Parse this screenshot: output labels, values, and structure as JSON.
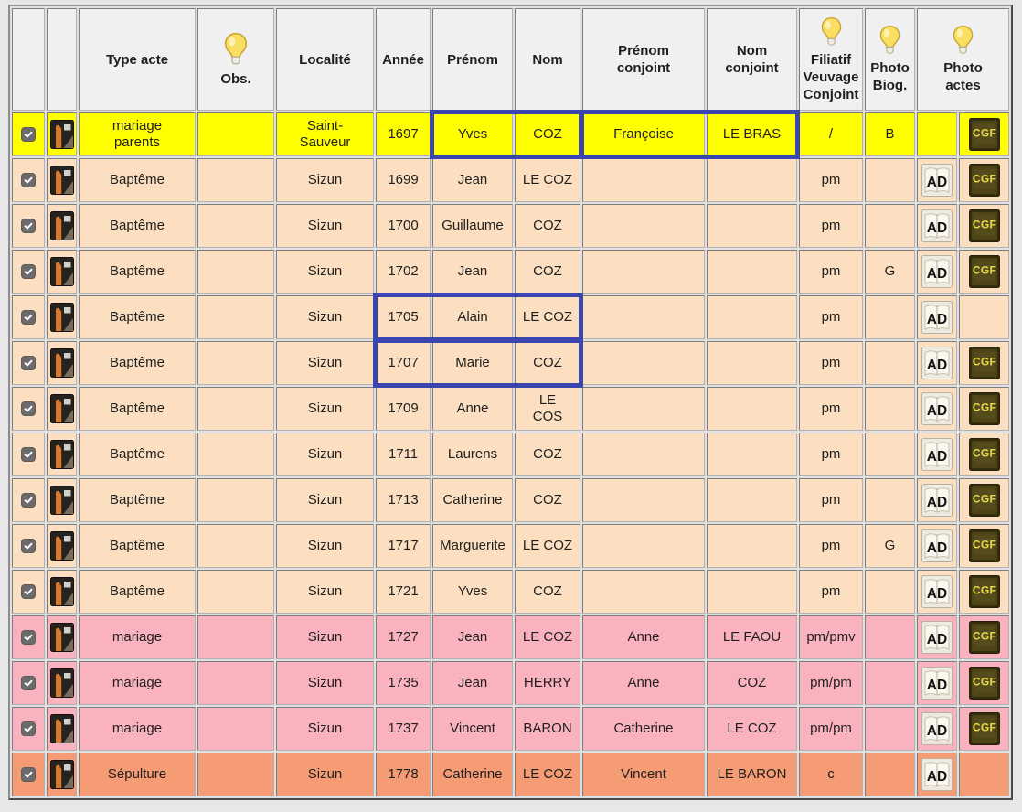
{
  "colors": {
    "page_background": "#e7e7e7",
    "header_bg": "#f0f0f0",
    "highlight_border": "#3a46ad",
    "rows": {
      "yellow": "#ffff00",
      "baptism": "#fbdfc0",
      "marriage": "#f9b2be",
      "burial": "#f69c74"
    }
  },
  "header": {
    "columns": [
      {
        "label": ""
      },
      {
        "label": ""
      },
      {
        "label": "Type acte",
        "bulb": false
      },
      {
        "label": "Obs.",
        "bulb": true
      },
      {
        "label": "Localité",
        "bulb": false
      },
      {
        "label": "Année",
        "bulb": false
      },
      {
        "label": "Prénom",
        "bulb": false
      },
      {
        "label": "Nom",
        "bulb": false
      },
      {
        "label": "Prénom conjoint",
        "bulb": false
      },
      {
        "label": "Nom conjoint",
        "bulb": false
      },
      {
        "label": "Filiatif Veuvage Conjoint",
        "bulb": true
      },
      {
        "label": "Photo Biog.",
        "bulb": true
      },
      {
        "label": "Photo actes",
        "bulb": true
      }
    ]
  },
  "icons": {
    "ad_label": "AD",
    "cgf_label": "CGF"
  },
  "rows": [
    {
      "checked": true,
      "type_acte": "mariage parents",
      "obs": "",
      "localite": "Saint-Sauveur",
      "annee": "1697",
      "prenom": "Yves",
      "nom": "COZ",
      "prenom_conjoint": "Françoise",
      "nom_conjoint": "LE BRAS",
      "filiatif": "/",
      "photo_biog": "B",
      "ad": false,
      "cgf": true,
      "color": "yellow"
    },
    {
      "checked": true,
      "type_acte": "Baptême",
      "obs": "",
      "localite": "Sizun",
      "annee": "1699",
      "prenom": "Jean",
      "nom": "LE COZ",
      "prenom_conjoint": "",
      "nom_conjoint": "",
      "filiatif": "pm",
      "photo_biog": "",
      "ad": true,
      "cgf": true,
      "color": "baptism"
    },
    {
      "checked": true,
      "type_acte": "Baptême",
      "obs": "",
      "localite": "Sizun",
      "annee": "1700",
      "prenom": "Guillaume",
      "nom": "COZ",
      "prenom_conjoint": "",
      "nom_conjoint": "",
      "filiatif": "pm",
      "photo_biog": "",
      "ad": true,
      "cgf": true,
      "color": "baptism"
    },
    {
      "checked": true,
      "type_acte": "Baptême",
      "obs": "",
      "localite": "Sizun",
      "annee": "1702",
      "prenom": "Jean",
      "nom": "COZ",
      "prenom_conjoint": "",
      "nom_conjoint": "",
      "filiatif": "pm",
      "photo_biog": "G",
      "ad": true,
      "cgf": true,
      "color": "baptism"
    },
    {
      "checked": true,
      "type_acte": "Baptême",
      "obs": "",
      "localite": "Sizun",
      "annee": "1705",
      "prenom": "Alain",
      "nom": "LE COZ",
      "prenom_conjoint": "",
      "nom_conjoint": "",
      "filiatif": "pm",
      "photo_biog": "",
      "ad": true,
      "cgf": false,
      "color": "baptism"
    },
    {
      "checked": true,
      "type_acte": "Baptême",
      "obs": "",
      "localite": "Sizun",
      "annee": "1707",
      "prenom": "Marie",
      "nom": "COZ",
      "prenom_conjoint": "",
      "nom_conjoint": "",
      "filiatif": "pm",
      "photo_biog": "",
      "ad": true,
      "cgf": true,
      "color": "baptism"
    },
    {
      "checked": true,
      "type_acte": "Baptême",
      "obs": "",
      "localite": "Sizun",
      "annee": "1709",
      "prenom": "Anne",
      "nom": "LE COS",
      "nom_wrap": true,
      "prenom_conjoint": "",
      "nom_conjoint": "",
      "filiatif": "pm",
      "photo_biog": "",
      "ad": true,
      "cgf": true,
      "color": "baptism"
    },
    {
      "checked": true,
      "type_acte": "Baptême",
      "obs": "",
      "localite": "Sizun",
      "annee": "1711",
      "prenom": "Laurens",
      "nom": "COZ",
      "prenom_conjoint": "",
      "nom_conjoint": "",
      "filiatif": "pm",
      "photo_biog": "",
      "ad": true,
      "cgf": true,
      "color": "baptism"
    },
    {
      "checked": true,
      "type_acte": "Baptême",
      "obs": "",
      "localite": "Sizun",
      "annee": "1713",
      "prenom": "Catherine",
      "nom": "COZ",
      "prenom_conjoint": "",
      "nom_conjoint": "",
      "filiatif": "pm",
      "photo_biog": "",
      "ad": true,
      "cgf": true,
      "color": "baptism"
    },
    {
      "checked": true,
      "type_acte": "Baptême",
      "obs": "",
      "localite": "Sizun",
      "annee": "1717",
      "prenom": "Marguerite",
      "nom": "LE COZ",
      "prenom_conjoint": "",
      "nom_conjoint": "",
      "filiatif": "pm",
      "photo_biog": "G",
      "ad": true,
      "cgf": true,
      "color": "baptism"
    },
    {
      "checked": true,
      "type_acte": "Baptême",
      "obs": "",
      "localite": "Sizun",
      "annee": "1721",
      "prenom": "Yves",
      "nom": "COZ",
      "prenom_conjoint": "",
      "nom_conjoint": "",
      "filiatif": "pm",
      "photo_biog": "",
      "ad": true,
      "cgf": true,
      "color": "baptism"
    },
    {
      "checked": true,
      "type_acte": "mariage",
      "obs": "",
      "localite": "Sizun",
      "annee": "1727",
      "prenom": "Jean",
      "nom": "LE COZ",
      "prenom_conjoint": "Anne",
      "nom_conjoint": "LE FAOU",
      "filiatif": "pm/pmv",
      "photo_biog": "",
      "ad": true,
      "cgf": true,
      "color": "marriage"
    },
    {
      "checked": true,
      "type_acte": "mariage",
      "obs": "",
      "localite": "Sizun",
      "annee": "1735",
      "prenom": "Jean",
      "nom": "HERRY",
      "prenom_conjoint": "Anne",
      "nom_conjoint": "COZ",
      "filiatif": "pm/pm",
      "photo_biog": "",
      "ad": true,
      "cgf": true,
      "color": "marriage"
    },
    {
      "checked": true,
      "type_acte": "mariage",
      "obs": "",
      "localite": "Sizun",
      "annee": "1737",
      "prenom": "Vincent",
      "nom": "BARON",
      "prenom_conjoint": "Catherine",
      "nom_conjoint": "LE COZ",
      "filiatif": "pm/pm",
      "photo_biog": "",
      "ad": true,
      "cgf": true,
      "color": "marriage"
    },
    {
      "checked": true,
      "type_acte": "Sépulture",
      "obs": "",
      "localite": "Sizun",
      "annee": "1778",
      "prenom": "Catherine",
      "nom": "LE COZ",
      "prenom_conjoint": "Vincent",
      "nom_conjoint": "LE BARON",
      "filiatif": "c",
      "photo_biog": "",
      "ad": true,
      "cgf": false,
      "color": "burial"
    }
  ],
  "highlights": [
    {
      "row": 0,
      "from": "prenom",
      "to": "nom"
    },
    {
      "row": 0,
      "from": "prenom_conjoint",
      "to": "nom_conjoint"
    },
    {
      "row": 4,
      "from": "annee",
      "to": "nom"
    },
    {
      "row": 5,
      "from": "annee",
      "to": "nom"
    }
  ]
}
